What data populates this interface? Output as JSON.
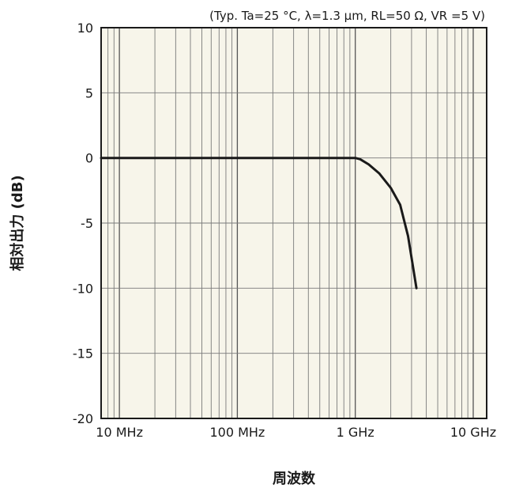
{
  "chart_data": {
    "type": "line",
    "conditions": "(Typ. Ta=25 °C,  λ=1.3 μm, RL=50 Ω, VR =5 V)",
    "xlabel": "周波数",
    "ylabel": "相対出力 (dB)",
    "x_scale": "log",
    "xlim_hz": [
      7000000,
      13000000000
    ],
    "ylim": [
      -20,
      10
    ],
    "y_ticks": [
      {
        "value": 10,
        "label": "10"
      },
      {
        "value": 5,
        "label": "5"
      },
      {
        "value": 0,
        "label": "0"
      },
      {
        "value": -5,
        "label": "-5"
      },
      {
        "value": -10,
        "label": "-10"
      },
      {
        "value": -15,
        "label": "-15"
      },
      {
        "value": -20,
        "label": "-20"
      }
    ],
    "x_ticks": [
      {
        "value_hz": 10000000,
        "label": "10 MHz"
      },
      {
        "value_hz": 100000000,
        "label": "100 MHz"
      },
      {
        "value_hz": 1000000000,
        "label": "1 GHz"
      },
      {
        "value_hz": 10000000000,
        "label": "10 GHz"
      }
    ],
    "grid": true,
    "plot_background": "#f7f5ea",
    "series": [
      {
        "color": "#1a1a1a",
        "x_hz": [
          7000000,
          100000000,
          1000000000,
          1100000000,
          1300000000,
          1600000000,
          2000000000,
          2400000000,
          2800000000,
          3300000000
        ],
        "y_db": [
          0,
          0,
          0,
          -0.1,
          -0.5,
          -1.2,
          -2.3,
          -3.6,
          -6.0,
          -10.0
        ]
      }
    ]
  }
}
